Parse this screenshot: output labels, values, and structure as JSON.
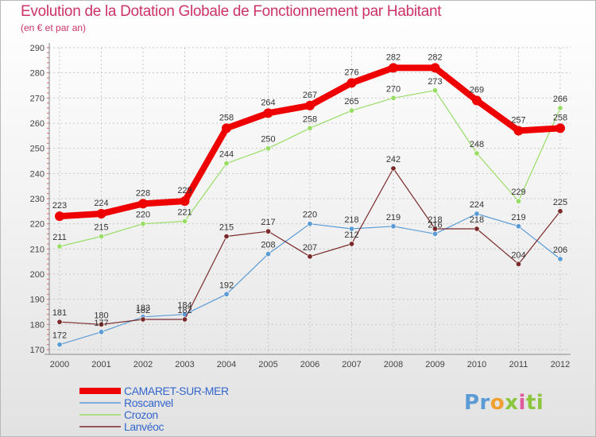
{
  "title": "Evolution de la Dotation Globale de Fonctionnement par Habitant",
  "subtitle": "(en € et par an)",
  "brand": [
    "Pr",
    "o",
    "x",
    "i",
    "ti"
  ],
  "chart_data": {
    "type": "line",
    "x": [
      "2000",
      "2001",
      "2002",
      "2003",
      "2004",
      "2005",
      "2006",
      "2007",
      "2008",
      "2009",
      "2010",
      "2011",
      "2012"
    ],
    "ylim": [
      170,
      290
    ],
    "yticks": [
      170,
      180,
      190,
      200,
      210,
      220,
      230,
      240,
      250,
      260,
      270,
      280,
      290
    ],
    "grid": true,
    "legend_position": "bottom-left",
    "series": [
      {
        "name": "CAMARET-SUR-MER",
        "color": "#ee0000",
        "values": [
          223,
          224,
          228,
          229,
          258,
          264,
          267,
          276,
          282,
          282,
          269,
          257,
          258
        ]
      },
      {
        "name": "Roscanvel",
        "color": "#5b9bd5",
        "values": [
          172,
          177,
          183,
          184,
          192,
          208,
          220,
          218,
          219,
          216,
          224,
          219,
          206
        ]
      },
      {
        "name": "Crozon",
        "color": "#99dd66",
        "values": [
          211,
          215,
          220,
          221,
          244,
          250,
          258,
          265,
          270,
          273,
          248,
          229,
          266
        ]
      },
      {
        "name": "Lanvéoc",
        "color": "#7a2a2a",
        "values": [
          181,
          180,
          182,
          182,
          215,
          217,
          207,
          212,
          242,
          218,
          218,
          204,
          225
        ]
      }
    ],
    "legend": [
      "CAMARET-SUR-MER",
      "Roscanvel",
      "Crozon",
      "Lanvéoc"
    ]
  }
}
